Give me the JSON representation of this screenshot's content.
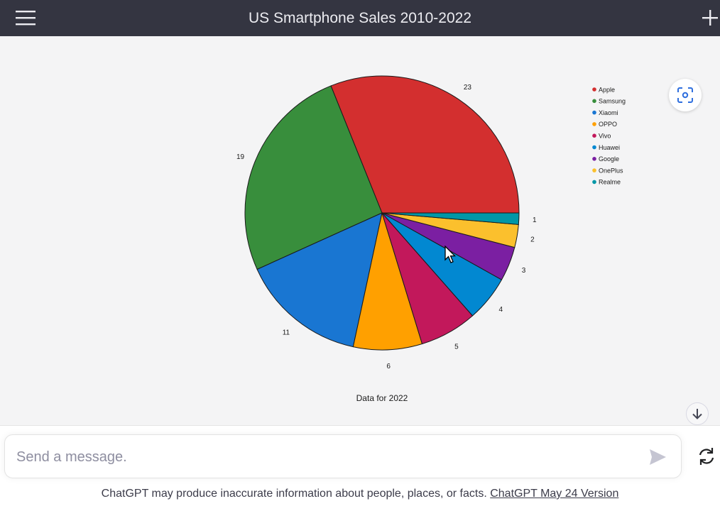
{
  "header": {
    "title": "US Smartphone Sales 2010-2022",
    "menu_icon": "hamburger-menu-icon",
    "new_chat_icon": "plus-icon"
  },
  "chart_data": {
    "type": "pie",
    "title": "",
    "xlabel": "Data for 2022",
    "categories": [
      "Apple",
      "Samsung",
      "Xiaomi",
      "OPPO",
      "Vivo",
      "Huawei",
      "Google",
      "OnePlus",
      "Realme"
    ],
    "values": [
      23,
      19,
      11,
      6,
      5,
      4,
      3,
      2,
      1
    ],
    "colors": [
      "#d32f2f",
      "#388e3c",
      "#1976d2",
      "#ffa000",
      "#c2185b",
      "#0288d1",
      "#7b1fa2",
      "#fbc02d",
      "#0097a7"
    ],
    "legend_position": "top-right",
    "start_angle_deg": 0,
    "direction": "counterclockwise-from-right"
  },
  "composer": {
    "placeholder": "Send a message.",
    "send_icon": "send-icon",
    "regenerate_icon": "regenerate-icon"
  },
  "footer": {
    "text": "ChatGPT may produce inaccurate information about people, places, or facts.",
    "link": "ChatGPT May 24 Version"
  },
  "icons": {
    "focus": "focus-icon",
    "scroll_down": "arrow-down-icon",
    "cursor": "mouse-cursor-icon"
  }
}
